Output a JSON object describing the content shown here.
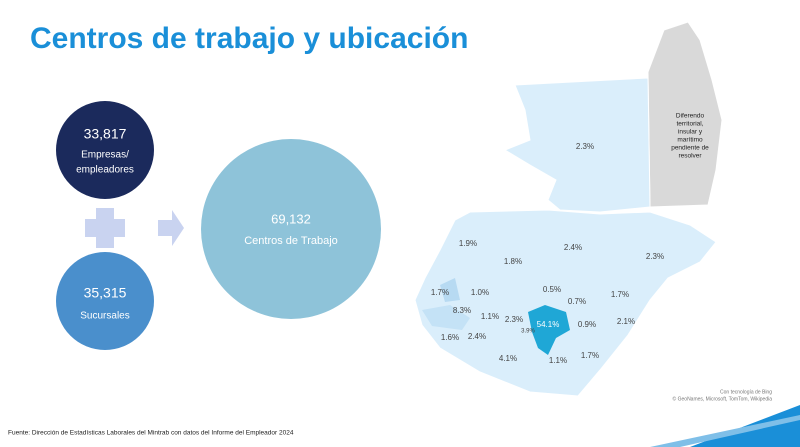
{
  "header": {
    "title": "Centros de trabajo y ubicación"
  },
  "summary": {
    "companies": {
      "value": "33,817",
      "label": [
        "Empresas/",
        "empleadores"
      ]
    },
    "branches": {
      "value": "35,315",
      "label": [
        "Sucursales"
      ]
    },
    "total": {
      "value": "69,132",
      "label": [
        "Centros de Trabajo"
      ]
    }
  },
  "map": {
    "regions": [
      "2.3%",
      "1.9%",
      "2.4%",
      "2.3%",
      "1.8%",
      "1.7%",
      "1.0%",
      "0.5%",
      "0.7%",
      "1.7%",
      "8.3%",
      "1.1%",
      "2.3%",
      "54.1%",
      "3.9%",
      "0.9%",
      "2.1%",
      "1.6%",
      "2.4%",
      "4.1%",
      "1.1%",
      "1.7%"
    ],
    "note": [
      "Diferendo",
      "territorial,",
      "insular y",
      "marítimo",
      "pendiente de",
      "resolver"
    ],
    "attribution": [
      "Con tecnología de Bing",
      "© GeoNames,  Microsoft, TomTom, Wikipedia"
    ]
  },
  "footer": {
    "source": "Fuente: Dirección de Estadísticas Laborales del Mintrab con datos del Informe del Empleador 2024"
  }
}
